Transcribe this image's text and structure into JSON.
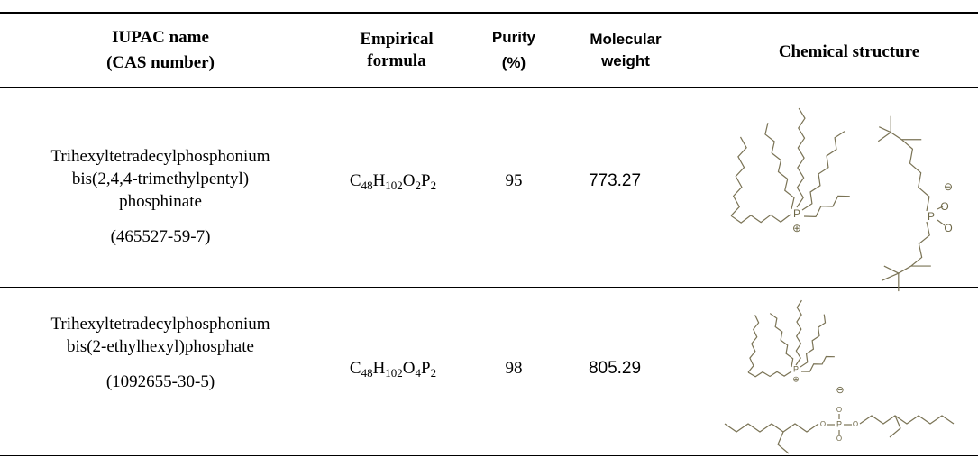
{
  "table": {
    "header": [
      [
        "IUPAC name",
        "(CAS number)"
      ],
      [
        "Empirical",
        "formula"
      ],
      [
        "Purity",
        "(%)"
      ],
      [
        "Molecular",
        "weight"
      ],
      [
        "Chemical structure"
      ]
    ],
    "rows": [
      {
        "name": [
          "Trihexyltetradecylphosphonium",
          "bis(2,4,4-trimethylpentyl)",
          "phosphinate"
        ],
        "cas": "(465527-59-7)",
        "formula": [
          [
            "C",
            "48"
          ],
          [
            "H",
            "102"
          ],
          [
            "O",
            "2"
          ],
          [
            "P",
            "2"
          ]
        ],
        "purity": 95,
        "mw": 773.27,
        "atoms": [
          "P",
          "P",
          "O",
          "O"
        ]
      },
      {
        "name": [
          "Trihexyltetradecylphosphonium",
          "bis(2-ethylhexyl)phosphate"
        ],
        "cas": "(1092655-30-5)",
        "formula": [
          [
            "C",
            "48"
          ],
          [
            "H",
            "102"
          ],
          [
            "O",
            "4"
          ],
          [
            "P",
            "2"
          ]
        ],
        "purity": 98,
        "mw": 805.29,
        "atoms": [
          "P",
          "P",
          "O",
          "O",
          "O",
          "O"
        ]
      }
    ]
  }
}
